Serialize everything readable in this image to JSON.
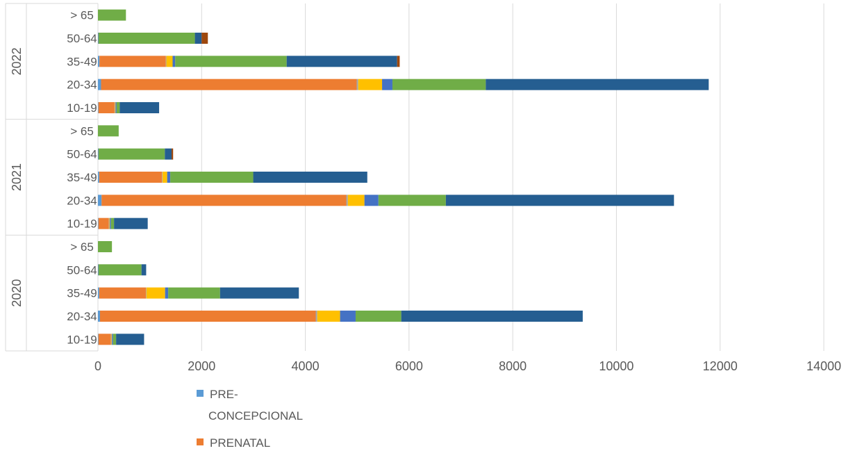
{
  "chart_data": {
    "type": "bar",
    "orientation": "horizontal",
    "stacked": true,
    "title": "",
    "xlabel": "",
    "ylabel": "",
    "xlim": [
      0,
      14000
    ],
    "x_ticks": [
      "0",
      "2000",
      "4000",
      "6000",
      "8000",
      "10000",
      "12000",
      "14000"
    ],
    "grid": true,
    "legend_position": "bottom",
    "groups": [
      {
        "label": "2022",
        "categories": [
          "10-19",
          "20-34",
          "35-49",
          "50-64",
          "> 65"
        ]
      },
      {
        "label": "2021",
        "categories": [
          "10-19",
          "20-34",
          "35-49",
          "50-64",
          "> 65"
        ]
      },
      {
        "label": "2020",
        "categories": [
          "10-19",
          "20-34",
          "35-49",
          "50-64",
          "> 65"
        ]
      }
    ],
    "series": [
      {
        "name": "PRE-CONCEPCIONAL",
        "color": "#5b9bd5",
        "values": {
          "2022": [
            10,
            60,
            30,
            0,
            0
          ],
          "2021": [
            10,
            70,
            25,
            0,
            0
          ],
          "2020": [
            10,
            40,
            25,
            0,
            0
          ]
        }
      },
      {
        "name": "PRENATAL",
        "color": "#ed7d31",
        "values": {
          "2022": [
            310,
            4930,
            1280,
            0,
            0
          ],
          "2021": [
            200,
            4720,
            1210,
            0,
            0
          ],
          "2020": [
            240,
            4160,
            900,
            0,
            0
          ]
        }
      },
      {
        "name": "",
        "color": "#a5a5a5",
        "values": {
          "2022": [
            10,
            30,
            10,
            0,
            0
          ],
          "2021": [
            10,
            30,
            10,
            0,
            0
          ],
          "2020": [
            10,
            30,
            10,
            0,
            0
          ]
        }
      },
      {
        "name": "",
        "color": "#ffc000",
        "values": {
          "2022": [
            10,
            460,
            120,
            0,
            0
          ],
          "2021": [
            10,
            320,
            90,
            0,
            0
          ],
          "2020": [
            10,
            440,
            360,
            0,
            0
          ]
        }
      },
      {
        "name": "",
        "color": "#4472c4",
        "values": {
          "2022": [
            20,
            200,
            50,
            10,
            0
          ],
          "2021": [
            20,
            270,
            60,
            10,
            0
          ],
          "2020": [
            20,
            300,
            60,
            10,
            0
          ]
        }
      },
      {
        "name": "",
        "color": "#70ad47",
        "values": {
          "2022": [
            60,
            1800,
            2150,
            1860,
            540
          ],
          "2021": [
            60,
            1300,
            1600,
            1280,
            400
          ],
          "2020": [
            60,
            880,
            1000,
            830,
            270
          ]
        }
      },
      {
        "name": "",
        "color": "#255e91",
        "values": {
          "2022": [
            760,
            4300,
            2130,
            130,
            0
          ],
          "2021": [
            650,
            4400,
            2200,
            130,
            0
          ],
          "2020": [
            540,
            3500,
            1520,
            90,
            0
          ]
        }
      },
      {
        "name": "",
        "color": "#9e480e",
        "values": {
          "2022": [
            0,
            0,
            50,
            120,
            0
          ],
          "2021": [
            0,
            0,
            0,
            30,
            0
          ],
          "2020": [
            0,
            0,
            0,
            0,
            0
          ]
        }
      }
    ]
  }
}
